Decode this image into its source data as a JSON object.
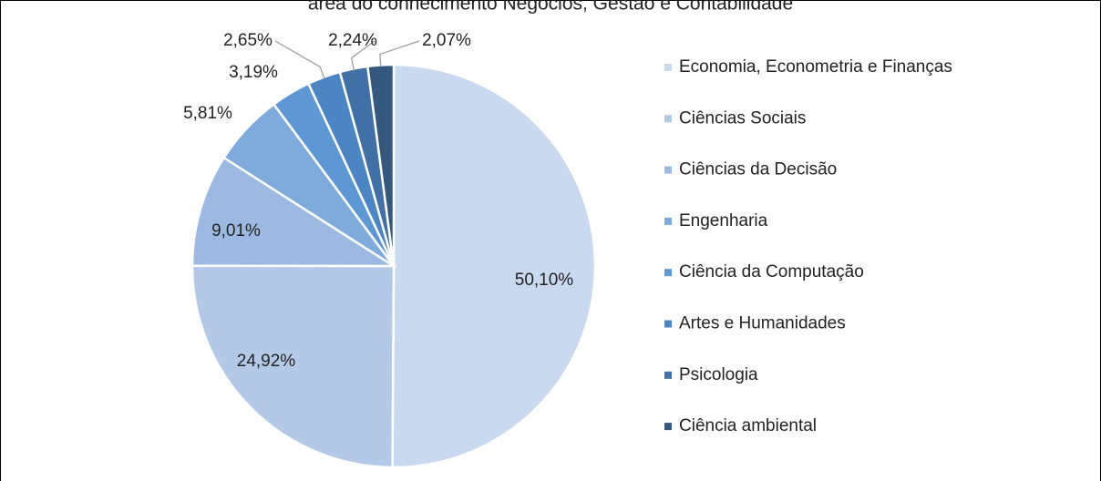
{
  "chart_data": {
    "type": "pie",
    "title": "área do conhecimento Negócios, Gestão e Contabilidade",
    "categories": [
      "Economia, Econometria e Finanças",
      "Ciências Sociais",
      "Ciências da Decisão",
      "Engenharia",
      "Ciência da Computação",
      "Artes e Humanidades",
      "Psicologia",
      "Ciência ambiental"
    ],
    "values": [
      50.1,
      24.92,
      9.01,
      5.81,
      3.19,
      2.65,
      2.24,
      2.07
    ],
    "value_labels": [
      "50,10%",
      "24,92%",
      "9,01%",
      "5,81%",
      "3,19%",
      "2,65%",
      "2,24%",
      "2,07%"
    ],
    "colors": [
      "#c9d9ef",
      "#b3c9e7",
      "#9cb9e1",
      "#7eaadc",
      "#5e98d4",
      "#4c85c3",
      "#4070a6",
      "#35587f"
    ],
    "legend": "right"
  }
}
